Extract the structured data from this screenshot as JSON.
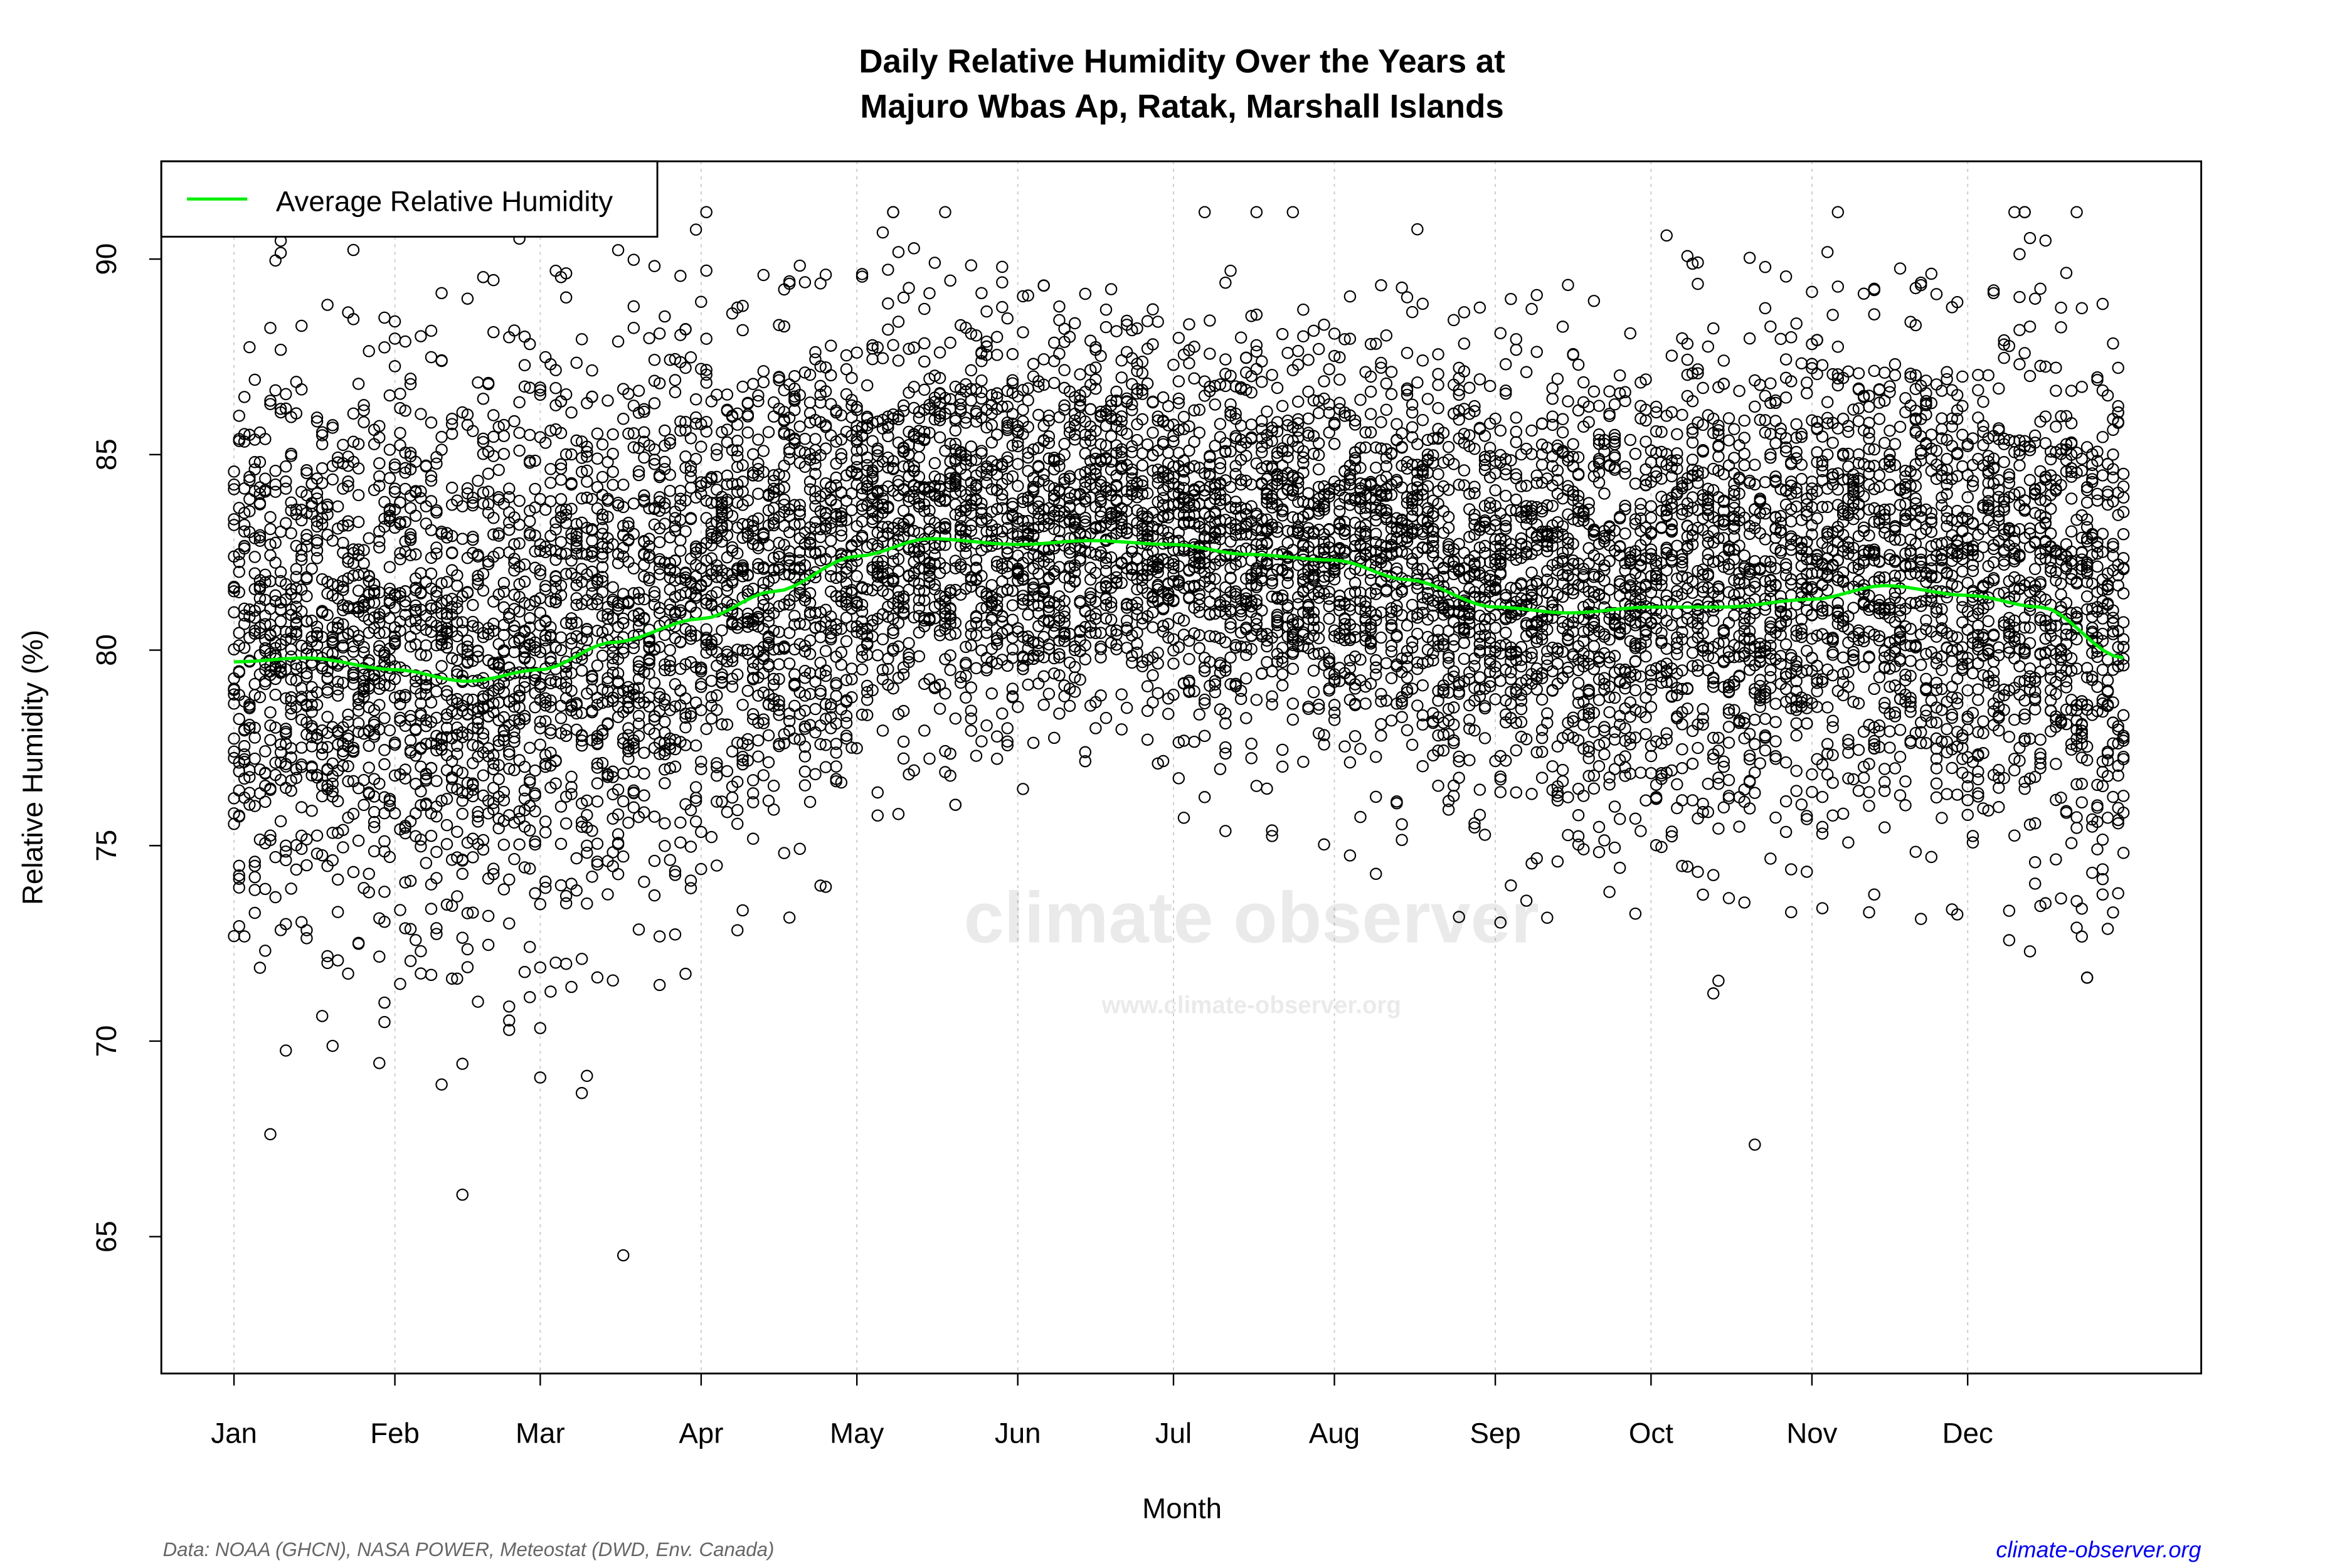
{
  "chart_data": {
    "type": "scatter",
    "title_line1": "Daily Relative Humidity Over the Years at",
    "title_line2": "Majuro Wbas Ap, Ratak, Marshall Islands",
    "xlabel": "Month",
    "ylabel": "Relative Humidity  (%)",
    "x_ticks": [
      "Jan",
      "Feb",
      "Mar",
      "Apr",
      "May",
      "Jun",
      "Jul",
      "Aug",
      "Sep",
      "Oct",
      "Nov",
      "Dec"
    ],
    "x_tick_days": [
      0,
      31,
      59,
      90,
      120,
      151,
      181,
      212,
      243,
      273,
      304,
      334
    ],
    "y_ticks": [
      65,
      70,
      75,
      80,
      85,
      90
    ],
    "ylim": [
      61.5,
      92.5
    ],
    "xlim_days": [
      -14,
      379
    ],
    "grid": "vertical dotted at month starts",
    "legend": {
      "label": "Average Relative Humidity",
      "placement": "top-left"
    },
    "average_line_color": "#00ee00",
    "point_color": "#000000",
    "average_series": {
      "name": "Average Relative Humidity",
      "day": [
        0,
        14,
        31,
        45,
        59,
        73,
        90,
        104,
        120,
        134,
        151,
        165,
        181,
        195,
        212,
        226,
        243,
        257,
        273,
        287,
        304,
        318,
        334,
        348,
        364
      ],
      "value": [
        79.7,
        79.8,
        79.5,
        79.2,
        79.5,
        80.2,
        80.8,
        81.5,
        82.4,
        82.85,
        82.7,
        82.8,
        82.7,
        82.45,
        82.3,
        81.8,
        81.1,
        80.95,
        81.1,
        81.1,
        81.3,
        81.65,
        81.4,
        81.1,
        79.8
      ]
    },
    "daily_spread_sd_by_month": [
      3.6,
      3.6,
      3.4,
      3.0,
      2.6,
      2.5,
      2.5,
      2.6,
      2.8,
      3.0,
      3.0,
      3.3
    ],
    "observed_range": [
      63,
      91.2
    ]
  },
  "footer": {
    "source": "Data: NOAA (GHCN), NASA POWER, Meteostat (DWD, Env. Canada)",
    "site": "climate-observer.org"
  },
  "watermark": {
    "logo_text": "climate observer",
    "url_text": "www.climate-observer.org"
  }
}
